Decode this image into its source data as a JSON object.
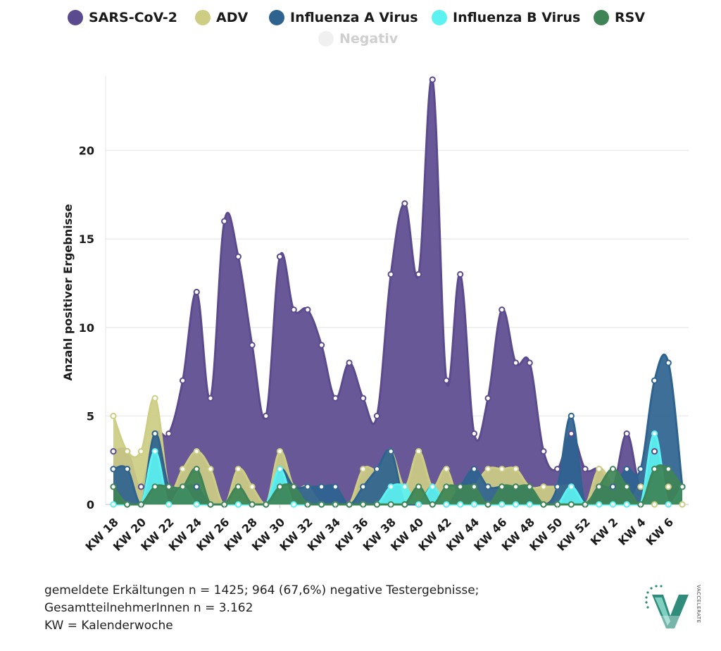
{
  "legend": [
    {
      "label": "SARS-CoV-2",
      "color": "#5c4a8e"
    },
    {
      "label": "ADV",
      "color": "#cdcd84"
    },
    {
      "label": "Influenza A Virus",
      "color": "#2e6390"
    },
    {
      "label": "Influenza B Virus",
      "color": "#5cf2f2"
    },
    {
      "label": "RSV",
      "color": "#3e8456"
    },
    {
      "label": "Negativ",
      "color": "#f0f0f0"
    }
  ],
  "footnote": {
    "line1": "gemeldete Erkältungen n = 1425; 964 (67,6%) negative Testergebnisse;",
    "line2": "GesamtteilnehmerInnen n = 3.162",
    "line3": "KW = Kalenderwoche"
  },
  "logo": {
    "text": "VACCELERATE"
  },
  "chart_data": {
    "type": "area",
    "title": "",
    "ylabel": "Anzahl positiver Ergebnisse",
    "xlabel": "",
    "ylim": [
      0,
      24
    ],
    "yticks": [
      0,
      5,
      10,
      15,
      20
    ],
    "grid": true,
    "legend_position": "top",
    "categories": [
      "KW 18",
      "KW 19",
      "KW 20",
      "KW 21",
      "KW 22",
      "KW 23",
      "KW 24",
      "KW 25",
      "KW 26",
      "KW 27",
      "KW 28",
      "KW 29",
      "KW 30",
      "KW 31",
      "KW 32",
      "KW 33",
      "KW 34",
      "KW 35",
      "KW 36",
      "KW 37",
      "KW 38",
      "KW 39",
      "KW 40",
      "KW 41",
      "KW 42",
      "KW 43",
      "KW 44",
      "KW 45",
      "KW 46",
      "KW 47",
      "KW 48",
      "KW 49",
      "KW 50",
      "KW 51",
      "KW 52",
      "KW 1",
      "KW 2",
      "KW 3",
      "KW 4",
      "KW 5",
      "KW 6",
      "KW 7"
    ],
    "tick_labels": [
      "KW 18",
      "KW 20",
      "KW 22",
      "KW 24",
      "KW 26",
      "KW 28",
      "KW 30",
      "KW 32",
      "KW 34",
      "KW 36",
      "KW 38",
      "KW 40",
      "KW 42",
      "KW 44",
      "KW 46",
      "KW 48",
      "KW 50",
      "KW 52",
      "KW 2",
      "KW 4",
      "KW 6"
    ],
    "series": [
      {
        "name": "SARS-CoV-2",
        "color": "#5c4a8e",
        "values": [
          3,
          3,
          1,
          4,
          4,
          7,
          12,
          6,
          16,
          14,
          9,
          5,
          14,
          11,
          11,
          9,
          6,
          8,
          6,
          5,
          13,
          17,
          13,
          24,
          7,
          13,
          4,
          6,
          11,
          8,
          8,
          3,
          2,
          4,
          2,
          2,
          1,
          4,
          1,
          3,
          1,
          1
        ]
      },
      {
        "name": "ADV",
        "color": "#cdcd84",
        "values": [
          5,
          3,
          3,
          6,
          1,
          2,
          3,
          2,
          0,
          2,
          1,
          0,
          3,
          1,
          1,
          0,
          0,
          0,
          2,
          2,
          3,
          1,
          3,
          1,
          2,
          0,
          1,
          2,
          2,
          2,
          1,
          1,
          1,
          1,
          0,
          2,
          1,
          0,
          1,
          0,
          1,
          0
        ]
      },
      {
        "name": "Influenza A Virus",
        "color": "#2e6390",
        "values": [
          2,
          2,
          0,
          4,
          1,
          1,
          1,
          0,
          0,
          0,
          0,
          0,
          2,
          1,
          1,
          1,
          1,
          0,
          1,
          2,
          3,
          0,
          0,
          1,
          0,
          1,
          2,
          1,
          1,
          1,
          1,
          0,
          1,
          5,
          0,
          1,
          1,
          2,
          2,
          7,
          8,
          1
        ]
      },
      {
        "name": "Influenza B Virus",
        "color": "#5cf2f2",
        "values": [
          0,
          0,
          0,
          3,
          0,
          1,
          0,
          0,
          0,
          0,
          0,
          0,
          2,
          0,
          0,
          0,
          0,
          0,
          0,
          0,
          1,
          1,
          0,
          1,
          0,
          0,
          0,
          0,
          0,
          0,
          0,
          0,
          0,
          1,
          0,
          0,
          0,
          0,
          0,
          4,
          0,
          1
        ]
      },
      {
        "name": "RSV",
        "color": "#3e8456",
        "values": [
          1,
          0,
          0,
          1,
          1,
          1,
          2,
          0,
          0,
          1,
          0,
          0,
          1,
          1,
          0,
          0,
          0,
          0,
          0,
          0,
          0,
          0,
          1,
          0,
          1,
          1,
          1,
          0,
          1,
          1,
          1,
          0,
          0,
          0,
          0,
          1,
          2,
          1,
          0,
          2,
          2,
          1
        ]
      }
    ]
  }
}
